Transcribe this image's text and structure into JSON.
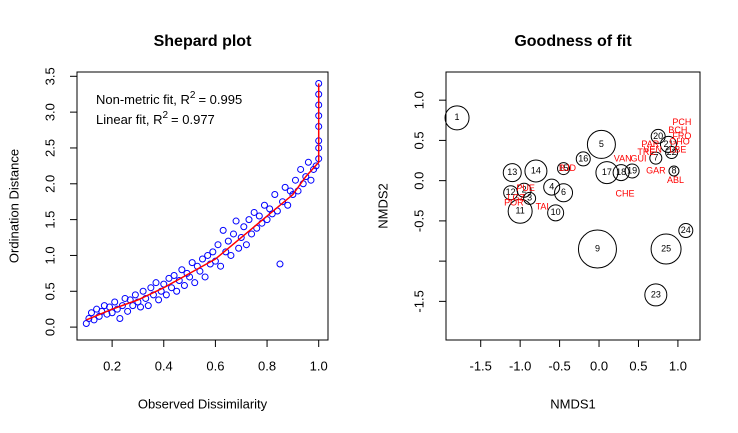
{
  "chart_data": [
    {
      "type": "scatter",
      "title": "Shepard plot",
      "x_label": "Observed Dissimilarity",
      "y_label": "Ordination Distance",
      "xlim": [
        0.064,
        1.036
      ],
      "ylim": [
        -0.18,
        3.56
      ],
      "xticks": [
        0.2,
        0.4,
        0.6,
        0.8,
        {
          "value": 1,
          "label": "1.0"
        }
      ],
      "yticks": [
        {
          "value": 0,
          "label": "0.0"
        },
        0.5,
        {
          "value": 1,
          "label": "1.0"
        },
        1.5,
        {
          "value": 2,
          "label": "2.0"
        },
        2.5,
        {
          "value": 3,
          "label": "3.0"
        },
        3.5
      ],
      "annotations": [
        {
          "text": "Non-metric fit, R",
          "superscript": "2",
          "suffix": "= 0.995"
        },
        {
          "text": "Linear fit, R",
          "superscript": "2",
          "suffix": "= 0.977"
        }
      ],
      "series": [
        {
          "color": "#0000ff",
          "mode": "markers",
          "x": [
            0.1,
            0.11,
            0.12,
            0.13,
            0.14,
            0.15,
            0.16,
            0.17,
            0.18,
            0.19,
            0.2,
            0.21,
            0.22,
            0.23,
            0.24,
            0.25,
            0.26,
            0.27,
            0.28,
            0.29,
            0.3,
            0.31,
            0.32,
            0.33,
            0.34,
            0.35,
            0.36,
            0.37,
            0.38,
            0.39,
            0.4,
            0.41,
            0.42,
            0.43,
            0.44,
            0.45,
            0.46,
            0.47,
            0.48,
            0.49,
            0.5,
            0.51,
            0.52,
            0.53,
            0.54,
            0.55,
            0.56,
            0.57,
            0.58,
            0.59,
            0.6,
            0.61,
            0.62,
            0.63,
            0.64,
            0.65,
            0.66,
            0.67,
            0.68,
            0.69,
            0.7,
            0.71,
            0.72,
            0.73,
            0.74,
            0.75,
            0.76,
            0.77,
            0.78,
            0.79,
            0.8,
            0.81,
            0.82,
            0.83,
            0.84,
            0.85,
            0.86,
            0.87,
            0.88,
            0.89,
            0.9,
            0.91,
            0.92,
            0.93,
            0.94,
            0.95,
            0.96,
            0.97,
            0.98,
            0.99,
            1.0,
            1.0,
            1.0,
            1.0,
            1.0,
            1.0,
            1.0,
            1.0
          ],
          "y": [
            0.05,
            0.12,
            0.2,
            0.1,
            0.25,
            0.15,
            0.22,
            0.3,
            0.18,
            0.28,
            0.2,
            0.35,
            0.25,
            0.12,
            0.3,
            0.4,
            0.22,
            0.38,
            0.3,
            0.45,
            0.35,
            0.28,
            0.5,
            0.4,
            0.3,
            0.55,
            0.45,
            0.62,
            0.38,
            0.5,
            0.6,
            0.45,
            0.68,
            0.55,
            0.72,
            0.5,
            0.65,
            0.8,
            0.58,
            0.75,
            0.7,
            0.9,
            0.62,
            0.85,
            0.78,
            0.95,
            0.7,
            1.0,
            0.88,
            1.05,
            0.92,
            1.15,
            0.85,
            1.35,
            1.05,
            1.2,
            1.0,
            1.3,
            1.48,
            1.1,
            1.25,
            1.4,
            1.15,
            1.5,
            1.3,
            1.6,
            1.38,
            1.55,
            1.45,
            1.7,
            1.5,
            1.65,
            1.58,
            1.85,
            1.62,
            0.88,
            1.75,
            1.95,
            1.7,
            1.9,
            1.85,
            2.05,
            1.9,
            2.2,
            2.0,
            2.1,
            2.3,
            2.05,
            2.2,
            2.25,
            2.35,
            2.6,
            2.8,
            2.95,
            3.1,
            3.25,
            3.4,
            2.5
          ]
        },
        {
          "color": "#ff0000",
          "mode": "line",
          "x": [
            0.1,
            0.2,
            0.3,
            0.4,
            0.5,
            0.6,
            0.7,
            0.8,
            0.9,
            0.95,
            1.0,
            1.0
          ],
          "y": [
            0.1,
            0.25,
            0.38,
            0.55,
            0.75,
            0.95,
            1.25,
            1.55,
            1.85,
            2.1,
            2.3,
            3.4
          ]
        }
      ]
    },
    {
      "type": "bubble",
      "title": "Goodness of fit",
      "x_label": "NMDS1",
      "y_label": "NMDS2",
      "xlim": [
        -1.94,
        1.28
      ],
      "ylim": [
        -1.98,
        1.35
      ],
      "xticks": [
        -1.5,
        {
          "value": -1,
          "label": "-1.0"
        },
        -0.5,
        {
          "value": 0,
          "label": "0.0"
        },
        0.5,
        {
          "value": 1,
          "label": "1.0"
        }
      ],
      "yticks": [
        {
          "value": 1,
          "label": "1.0"
        },
        0.5,
        {
          "value": 0,
          "label": "0.0"
        },
        -0.5,
        {
          "value": -1,
          "label": null
        },
        -1.5
      ],
      "series": [
        {
          "color": "#000000",
          "labels": [
            "1",
            "5",
            "13",
            "14",
            "16",
            "17",
            "18",
            "19",
            "4",
            "6",
            "11",
            "10",
            "9",
            "25",
            "24",
            "23",
            "12",
            "2",
            "3",
            "20",
            "21",
            "22",
            "7",
            "8",
            "15"
          ],
          "x": [
            -1.8,
            0.03,
            -1.1,
            -0.8,
            -0.2,
            0.1,
            0.28,
            0.42,
            -0.6,
            -0.45,
            -1.0,
            -0.55,
            -0.02,
            0.85,
            1.1,
            0.72,
            -1.12,
            -0.95,
            -0.88,
            0.75,
            0.88,
            0.92,
            0.72,
            0.95,
            -0.45
          ],
          "y": [
            0.78,
            0.45,
            0.1,
            0.12,
            0.27,
            0.1,
            0.1,
            0.12,
            -0.08,
            -0.15,
            -0.38,
            -0.4,
            -0.85,
            -0.85,
            -0.62,
            -1.42,
            -0.15,
            -0.12,
            -0.22,
            0.55,
            0.45,
            0.35,
            0.28,
            0.12,
            0.15
          ],
          "size": [
            0.012,
            0.014,
            0.009,
            0.011,
            0.007,
            0.011,
            0.008,
            0.007,
            0.008,
            0.009,
            0.012,
            0.008,
            0.019,
            0.015,
            0.007,
            0.011,
            0.007,
            0.007,
            0.006,
            0.007,
            0.008,
            0.006,
            0.006,
            0.005,
            0.006
          ]
        },
        {
          "color": "#ff0000",
          "labels": [
            "PCH",
            "BCH",
            "FRO",
            "GHO",
            "PAR",
            "VEN",
            "TRE",
            "LBE",
            "GUI",
            "VAN",
            "GAR",
            "ABL",
            "CHE",
            "BJD",
            "TAI",
            "LGZ",
            "PUE",
            "POR"
          ],
          "x": [
            1.05,
            1.0,
            1.05,
            1.02,
            0.65,
            0.68,
            0.6,
            1.0,
            0.5,
            0.3,
            0.72,
            0.97,
            0.33,
            -0.4,
            -0.72,
            -1.05,
            -0.93,
            -1.08
          ],
          "y": [
            0.72,
            0.62,
            0.55,
            0.48,
            0.45,
            0.38,
            0.35,
            0.38,
            0.27,
            0.27,
            0.12,
            0.0,
            -0.17,
            0.15,
            -0.33,
            -0.22,
            -0.1,
            -0.28
          ]
        }
      ]
    }
  ]
}
